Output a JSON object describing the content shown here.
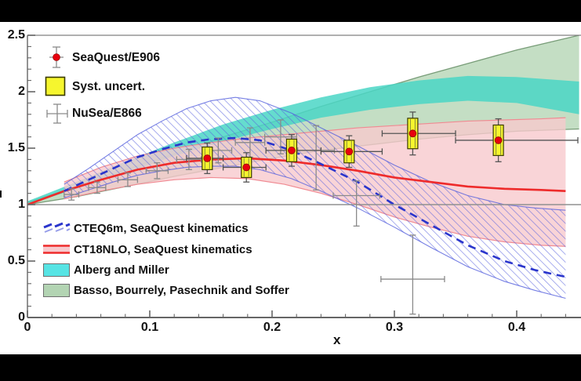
{
  "figure": {
    "page_bg": "#000000",
    "plot_bg": "#ffffff"
  },
  "colors": {
    "seaquest_marker": "#e8000e",
    "seaquest_marker_edge": "#990000",
    "syst_box": "#f6f62e",
    "syst_box_border": "#3a3a00",
    "nusea": "#8a8a8a",
    "stat_bar": "#555555",
    "cteq_line": "#2a35cc",
    "cteq_hatch": "#5560dd",
    "ct18_line": "#ee2b2b",
    "ct18_band": "#f7c9cd",
    "ct18_band_edge": "#f08a92",
    "alberg_band": "#4ad6c6",
    "basso_band": "#93c393",
    "basso_edge": "#6d946d",
    "frame": "#808080",
    "refline": "#909090",
    "text": "#111111"
  },
  "legend_top": {
    "items": [
      {
        "marker": "seaquest-point-marker",
        "label": "SeaQuest/E906"
      },
      {
        "marker": "syst-uncert-box-marker",
        "label": "Syst. uncert."
      },
      {
        "marker": "nusea-cross-marker",
        "label": "NuSea/E866"
      }
    ]
  },
  "legend_bottom": {
    "items": [
      {
        "marker": "cteq6m-dashed-marker",
        "label": "CTEQ6m, SeaQuest kinematics"
      },
      {
        "marker": "ct18nlo-band-marker",
        "label": "CT18NLO, SeaQuest kinematics"
      },
      {
        "marker": "alberg-band-marker",
        "label": "Alberg and Miller"
      },
      {
        "marker": "basso-band-marker",
        "label": "Basso, Bourrely, Pasechnik and Soffer"
      }
    ]
  },
  "axes": {
    "x": {
      "label": "x",
      "min": 0,
      "max": 0.451,
      "tick_values": [
        0,
        0.1,
        0.2,
        0.3,
        0.4
      ],
      "tick_labels": [
        "0",
        "0.1",
        "0.2",
        "0.3",
        "0.4"
      ],
      "minor_step": 0.02
    },
    "y": {
      "label": "",
      "min": 0,
      "max": 2.5,
      "tick_values": [
        0,
        0.5,
        1,
        1.5,
        2,
        2.5
      ],
      "tick_labels": [
        "0",
        "0.5",
        "1",
        "1.5",
        "2",
        "2.5"
      ],
      "minor_step": 0.1
    }
  },
  "chart_data": {
    "type": "composite",
    "title": "",
    "xlabel": "x",
    "ylabel": "",
    "xlim": [
      0,
      0.451
    ],
    "ylim": [
      0,
      2.5
    ],
    "grid": false,
    "refline_y": 1.0,
    "legend_position": "top-left and middle-left, no frame",
    "series": [
      {
        "name": "SeaQuest/E906",
        "type": "scatter",
        "x": [
          0.147,
          0.179,
          0.216,
          0.263,
          0.315,
          0.385
        ],
        "y": [
          1.41,
          1.33,
          1.48,
          1.47,
          1.63,
          1.57
        ],
        "stat_err": [
          0.135,
          0.13,
          0.14,
          0.14,
          0.19,
          0.19
        ],
        "syst_err": [
          0.1,
          0.09,
          0.1,
          0.1,
          0.135,
          0.135
        ],
        "x_bin_lo": [
          0.13,
          0.16,
          0.195,
          0.24,
          0.29,
          0.35
        ],
        "x_bin_hi": [
          0.16,
          0.195,
          0.24,
          0.29,
          0.35,
          0.45
        ]
      },
      {
        "name": "NuSea/E866",
        "type": "scatter",
        "x": [
          0.036,
          0.057,
          0.082,
          0.106,
          0.132,
          0.156,
          0.182,
          0.207,
          0.236,
          0.269,
          0.315
        ],
        "y": [
          1.09,
          1.15,
          1.22,
          1.3,
          1.4,
          1.48,
          1.55,
          1.6,
          1.48,
          1.08,
          0.34
        ],
        "yerr_up": [
          0.05,
          0.05,
          0.06,
          0.07,
          0.09,
          0.11,
          0.13,
          0.15,
          0.22,
          0.13,
          0.39
        ],
        "yerr_dn": [
          0.05,
          0.05,
          0.06,
          0.07,
          0.09,
          0.11,
          0.13,
          0.15,
          0.35,
          0.27,
          0.31
        ],
        "xerr": [
          0.006,
          0.007,
          0.008,
          0.009,
          0.01,
          0.011,
          0.012,
          0.013,
          0.015,
          0.019,
          0.026
        ]
      },
      {
        "name": "CTEQ6m, SeaQuest kinematics",
        "type": "hatched-band-with-dashed-line",
        "x": [
          0.03,
          0.05,
          0.07,
          0.09,
          0.11,
          0.13,
          0.15,
          0.17,
          0.19,
          0.216,
          0.24,
          0.27,
          0.3,
          0.33,
          0.36,
          0.39,
          0.415,
          0.44
        ],
        "upper": [
          1.18,
          1.32,
          1.47,
          1.62,
          1.74,
          1.85,
          1.92,
          1.95,
          1.92,
          1.81,
          1.68,
          1.52,
          1.35,
          1.2,
          1.08,
          1.0,
          0.97,
          0.95
        ],
        "lower": [
          1.06,
          1.13,
          1.2,
          1.26,
          1.3,
          1.33,
          1.34,
          1.34,
          1.31,
          1.23,
          1.12,
          0.97,
          0.8,
          0.62,
          0.45,
          0.32,
          0.24,
          0.17
        ],
        "center": [
          1.12,
          1.22,
          1.32,
          1.42,
          1.49,
          1.55,
          1.58,
          1.59,
          1.57,
          1.48,
          1.36,
          1.2,
          1.0,
          0.82,
          0.64,
          0.5,
          0.42,
          0.36
        ]
      },
      {
        "name": "CT18NLO, SeaQuest kinematics",
        "type": "band-with-solid-line",
        "x": [
          0.03,
          0.06,
          0.09,
          0.12,
          0.15,
          0.18,
          0.21,
          0.24,
          0.27,
          0.3,
          0.33,
          0.36,
          0.39,
          0.42,
          0.44
        ],
        "upper": [
          1.2,
          1.33,
          1.43,
          1.5,
          1.55,
          1.59,
          1.62,
          1.65,
          1.68,
          1.7,
          1.72,
          1.74,
          1.75,
          1.76,
          1.77
        ],
        "lower": [
          1.05,
          1.12,
          1.18,
          1.22,
          1.24,
          1.23,
          1.18,
          1.1,
          1.0,
          0.89,
          0.8,
          0.72,
          0.67,
          0.64,
          0.63
        ],
        "center_x": [
          0.0,
          0.03,
          0.06,
          0.09,
          0.12,
          0.15,
          0.18,
          0.21,
          0.24,
          0.27,
          0.3,
          0.33,
          0.36,
          0.39,
          0.42,
          0.44
        ],
        "center": [
          1.0,
          1.12,
          1.22,
          1.31,
          1.37,
          1.4,
          1.41,
          1.39,
          1.35,
          1.3,
          1.24,
          1.2,
          1.16,
          1.14,
          1.13,
          1.12
        ]
      },
      {
        "name": "Alberg and Miller",
        "type": "band",
        "x": [
          0.0,
          0.04,
          0.08,
          0.12,
          0.16,
          0.2,
          0.24,
          0.28,
          0.32,
          0.36,
          0.4,
          0.451
        ],
        "upper": [
          1.03,
          1.2,
          1.38,
          1.55,
          1.71,
          1.84,
          1.95,
          2.04,
          2.1,
          2.14,
          2.13,
          2.09
        ],
        "lower": [
          1.0,
          1.14,
          1.28,
          1.43,
          1.56,
          1.67,
          1.77,
          1.84,
          1.89,
          1.92,
          1.9,
          1.8
        ]
      },
      {
        "name": "Basso, Bourrely, Pasechnik and Soffer",
        "type": "band",
        "x": [
          0.0,
          0.04,
          0.08,
          0.12,
          0.16,
          0.2,
          0.24,
          0.28,
          0.32,
          0.36,
          0.4,
          0.451
        ],
        "upper": [
          1.02,
          1.16,
          1.31,
          1.45,
          1.6,
          1.73,
          1.87,
          2.0,
          2.13,
          2.25,
          2.37,
          2.5
        ],
        "lower": [
          1.0,
          1.07,
          1.16,
          1.25,
          1.33,
          1.41,
          1.48,
          1.53,
          1.58,
          1.62,
          1.65,
          1.67
        ]
      }
    ]
  }
}
